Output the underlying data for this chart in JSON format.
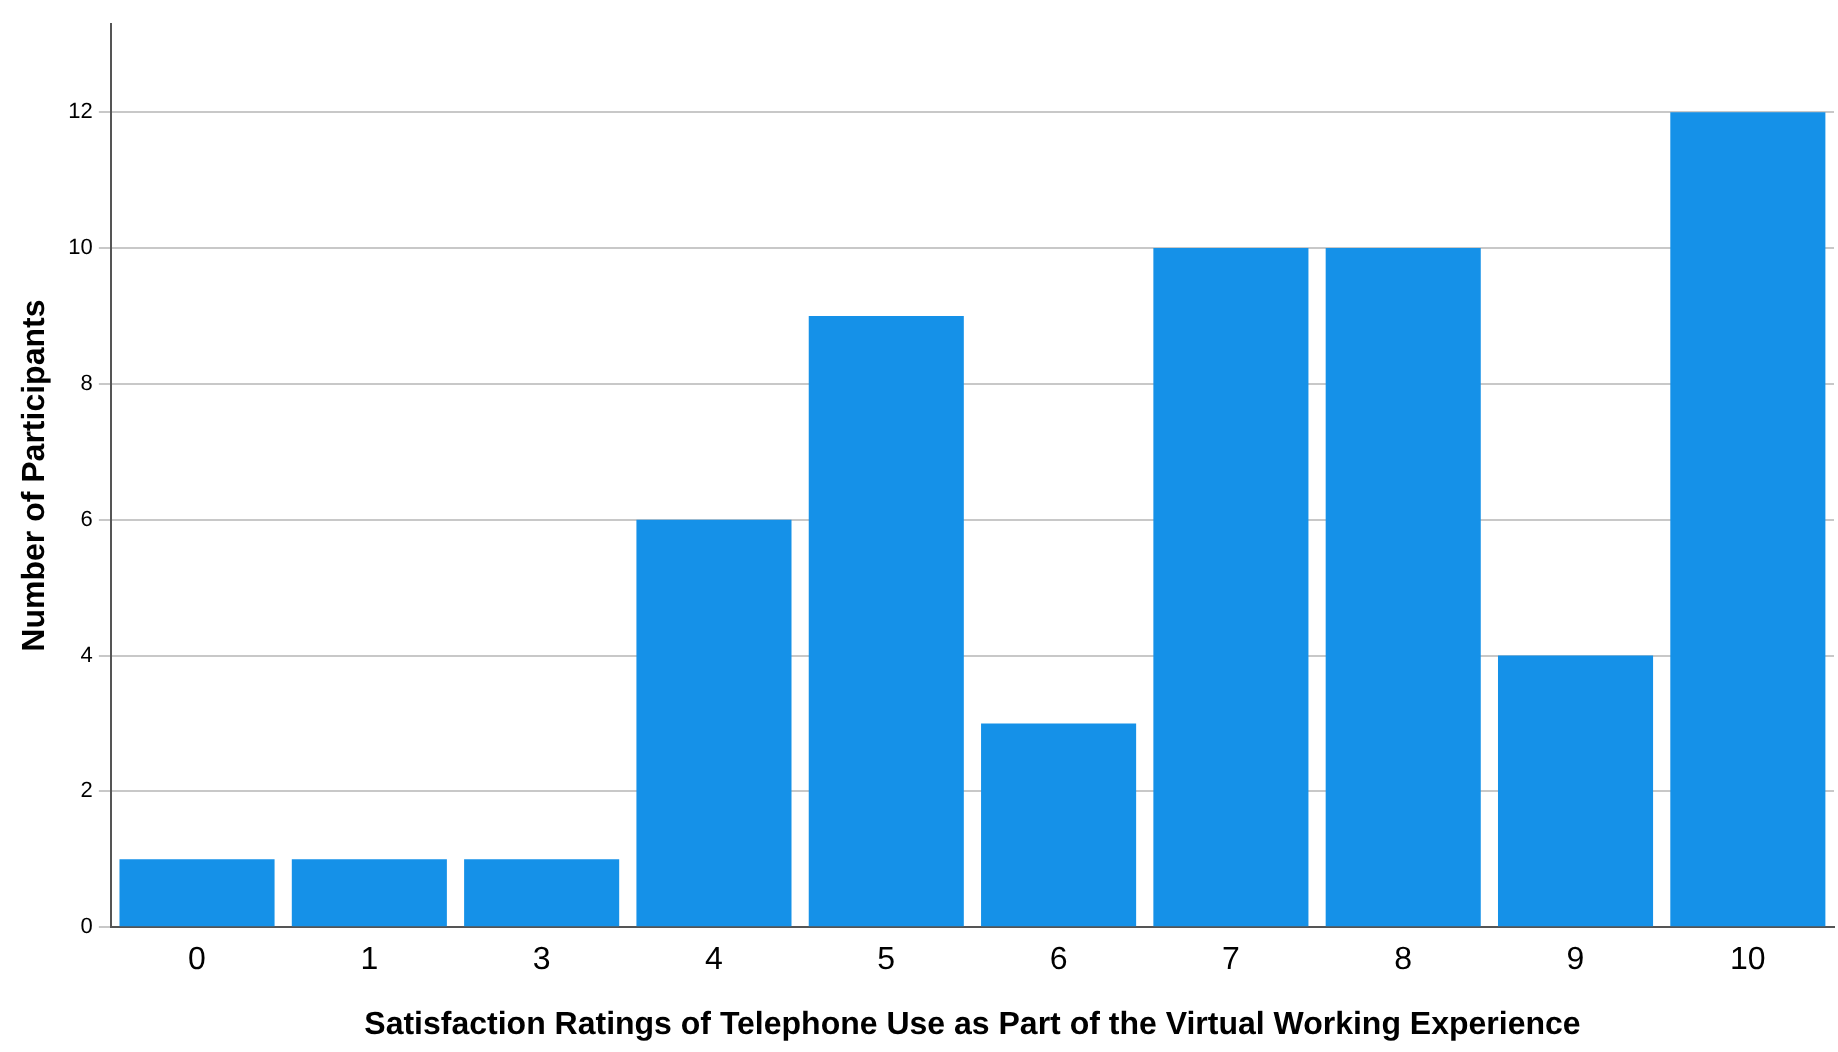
{
  "chart_data": {
    "type": "bar",
    "xlabel": "Satisfaction Ratings of Telephone Use as Part of the Virtual Working Experience",
    "ylabel": "Number of Participants",
    "categories": [
      "0",
      "1",
      "3",
      "4",
      "5",
      "6",
      "7",
      "8",
      "9",
      "10"
    ],
    "values": [
      1,
      1,
      1,
      6,
      9,
      3,
      10,
      10,
      4,
      12
    ],
    "color": "#1591e8",
    "ylim": [
      0,
      13.3
    ],
    "yticks": [
      0,
      2,
      4,
      6,
      8,
      10,
      12
    ],
    "grid": "y",
    "legend": false
  }
}
